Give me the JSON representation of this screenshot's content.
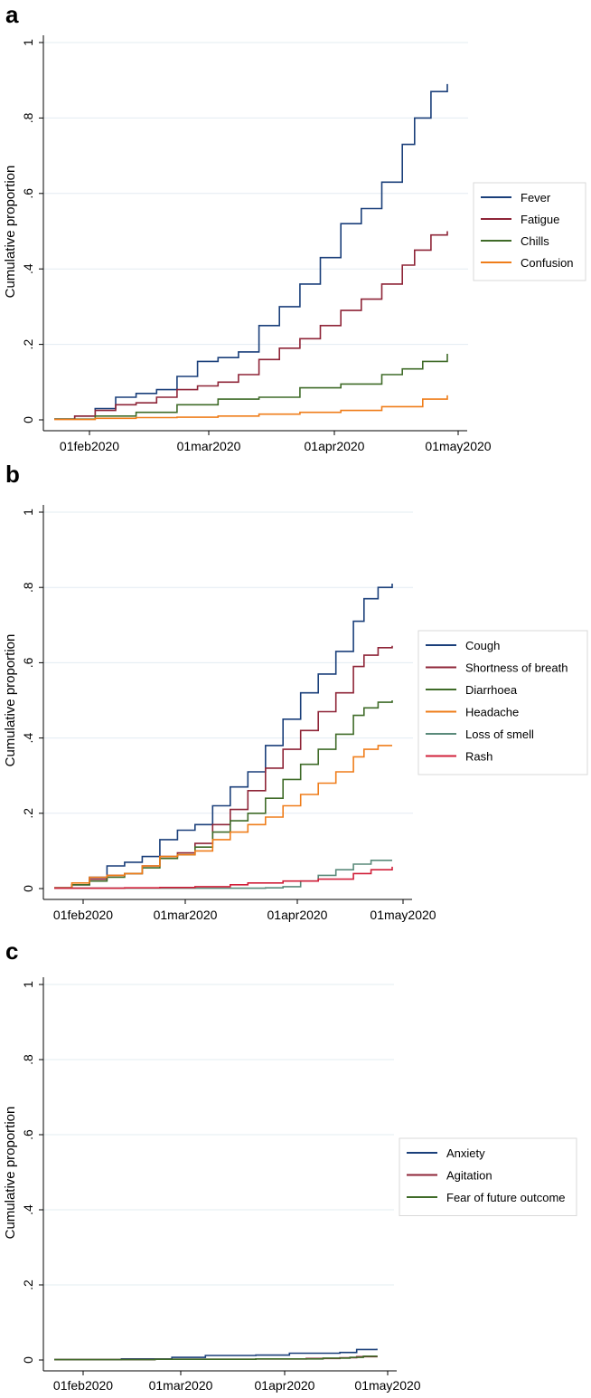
{
  "chart_data": [
    {
      "panel": "a",
      "type": "line",
      "title": "",
      "xlabel": "",
      "ylabel": "Cumulative proportion",
      "x_ticks": [
        "01feb2020",
        "01mar2020",
        "01apr2020",
        "01may2020"
      ],
      "y_ticks": [
        "0",
        ".2",
        ".4",
        ".6",
        ".8",
        "1"
      ],
      "ylim": [
        0,
        1
      ],
      "series": [
        {
          "name": "Fever",
          "color": "#1a3f7a",
          "x": [
            0,
            5,
            10,
            15,
            20,
            25,
            30,
            35,
            40,
            45,
            50,
            55,
            60,
            65,
            70,
            75,
            80,
            85,
            88,
            92,
            96
          ],
          "values": [
            0.002,
            0.01,
            0.03,
            0.06,
            0.07,
            0.08,
            0.115,
            0.155,
            0.165,
            0.18,
            0.25,
            0.3,
            0.36,
            0.43,
            0.52,
            0.56,
            0.63,
            0.73,
            0.8,
            0.87,
            0.89
          ]
        },
        {
          "name": "Fatigue",
          "color": "#8e2437",
          "x": [
            0,
            5,
            10,
            15,
            20,
            25,
            30,
            35,
            40,
            45,
            50,
            55,
            60,
            65,
            70,
            75,
            80,
            85,
            88,
            92,
            96
          ],
          "values": [
            0.002,
            0.01,
            0.025,
            0.04,
            0.045,
            0.06,
            0.08,
            0.09,
            0.1,
            0.12,
            0.16,
            0.19,
            0.215,
            0.25,
            0.29,
            0.32,
            0.36,
            0.41,
            0.45,
            0.49,
            0.5
          ]
        },
        {
          "name": "Chills",
          "color": "#3f6b28",
          "x": [
            0,
            10,
            20,
            30,
            40,
            50,
            60,
            70,
            80,
            85,
            90,
            96
          ],
          "values": [
            0.002,
            0.01,
            0.02,
            0.04,
            0.055,
            0.06,
            0.085,
            0.095,
            0.12,
            0.135,
            0.155,
            0.175
          ]
        },
        {
          "name": "Confusion",
          "color": "#ef7d1a",
          "x": [
            0,
            10,
            20,
            30,
            40,
            50,
            60,
            70,
            80,
            90,
            96
          ],
          "values": [
            0.001,
            0.004,
            0.006,
            0.007,
            0.01,
            0.015,
            0.02,
            0.025,
            0.035,
            0.055,
            0.065
          ]
        }
      ]
    },
    {
      "panel": "b",
      "type": "line",
      "title": "",
      "xlabel": "",
      "ylabel": "Cumulative proportion",
      "x_ticks": [
        "01feb2020",
        "01mar2020",
        "01apr2020",
        "01may2020"
      ],
      "y_ticks": [
        "0",
        ".2",
        ".4",
        ".6",
        ".8",
        "1"
      ],
      "ylim": [
        0,
        1
      ],
      "series": [
        {
          "name": "Cough",
          "color": "#1a3f7a",
          "x": [
            0,
            5,
            10,
            15,
            20,
            25,
            30,
            35,
            40,
            45,
            50,
            55,
            60,
            65,
            70,
            75,
            80,
            85,
            88,
            92,
            96
          ],
          "values": [
            0.002,
            0.01,
            0.03,
            0.06,
            0.07,
            0.085,
            0.13,
            0.155,
            0.17,
            0.22,
            0.27,
            0.31,
            0.38,
            0.45,
            0.52,
            0.57,
            0.63,
            0.71,
            0.77,
            0.8,
            0.81
          ]
        },
        {
          "name": "Shortness of breath",
          "color": "#8e2437",
          "x": [
            0,
            5,
            10,
            15,
            20,
            25,
            30,
            35,
            40,
            45,
            50,
            55,
            60,
            65,
            70,
            75,
            80,
            85,
            88,
            92,
            96
          ],
          "values": [
            0.002,
            0.01,
            0.025,
            0.035,
            0.04,
            0.06,
            0.085,
            0.095,
            0.12,
            0.17,
            0.21,
            0.26,
            0.32,
            0.37,
            0.42,
            0.47,
            0.52,
            0.59,
            0.62,
            0.64,
            0.645
          ]
        },
        {
          "name": "Diarrhoea",
          "color": "#3f6b28",
          "x": [
            0,
            5,
            10,
            15,
            20,
            25,
            30,
            35,
            40,
            45,
            50,
            55,
            60,
            65,
            70,
            75,
            80,
            85,
            88,
            92,
            96
          ],
          "values": [
            0.002,
            0.01,
            0.02,
            0.03,
            0.04,
            0.055,
            0.08,
            0.09,
            0.11,
            0.15,
            0.18,
            0.2,
            0.24,
            0.29,
            0.33,
            0.37,
            0.41,
            0.46,
            0.48,
            0.495,
            0.5
          ]
        },
        {
          "name": "Headache",
          "color": "#ef7d1a",
          "x": [
            0,
            5,
            10,
            15,
            20,
            25,
            30,
            35,
            40,
            45,
            50,
            55,
            60,
            65,
            70,
            75,
            80,
            85,
            88,
            92,
            96
          ],
          "values": [
            0.002,
            0.015,
            0.03,
            0.035,
            0.04,
            0.06,
            0.085,
            0.09,
            0.1,
            0.13,
            0.15,
            0.17,
            0.19,
            0.22,
            0.25,
            0.28,
            0.31,
            0.35,
            0.37,
            0.38,
            0.38
          ]
        },
        {
          "name": "Loss of smell",
          "color": "#5a8a7a",
          "x": [
            0,
            40,
            60,
            65,
            70,
            75,
            80,
            85,
            90,
            96
          ],
          "values": [
            0.001,
            0.001,
            0.002,
            0.005,
            0.02,
            0.035,
            0.05,
            0.065,
            0.075,
            0.075
          ]
        },
        {
          "name": "Rash",
          "color": "#d1203a",
          "x": [
            0,
            20,
            30,
            40,
            50,
            55,
            65,
            75,
            85,
            90,
            96
          ],
          "values": [
            0.001,
            0.002,
            0.003,
            0.005,
            0.01,
            0.015,
            0.02,
            0.025,
            0.04,
            0.05,
            0.058
          ]
        }
      ]
    },
    {
      "panel": "c",
      "type": "line",
      "title": "",
      "xlabel": "",
      "ylabel": "Cumulative proportion",
      "x_ticks": [
        "01feb2020",
        "01mar2020",
        "01apr2020",
        "01may2020"
      ],
      "y_ticks": [
        "0",
        ".2",
        ".4",
        ".6",
        ".8",
        "1"
      ],
      "ylim": [
        0,
        1
      ],
      "series": [
        {
          "name": "Anxiety",
          "color": "#1a3f7a",
          "x": [
            0,
            20,
            35,
            45,
            60,
            70,
            85,
            90,
            96
          ],
          "values": [
            0.001,
            0.003,
            0.007,
            0.012,
            0.013,
            0.018,
            0.02,
            0.028,
            0.03
          ]
        },
        {
          "name": "Agitation",
          "color": "#8e2437",
          "x": [
            0,
            30,
            60,
            75,
            85,
            90,
            96
          ],
          "values": [
            0.001,
            0.002,
            0.003,
            0.004,
            0.006,
            0.009,
            0.01
          ]
        },
        {
          "name": "Fear of future outcome",
          "color": "#3f6b28",
          "x": [
            0,
            30,
            60,
            80,
            88,
            92,
            96
          ],
          "values": [
            0.001,
            0.002,
            0.003,
            0.005,
            0.007,
            0.01,
            0.012
          ]
        }
      ]
    }
  ]
}
